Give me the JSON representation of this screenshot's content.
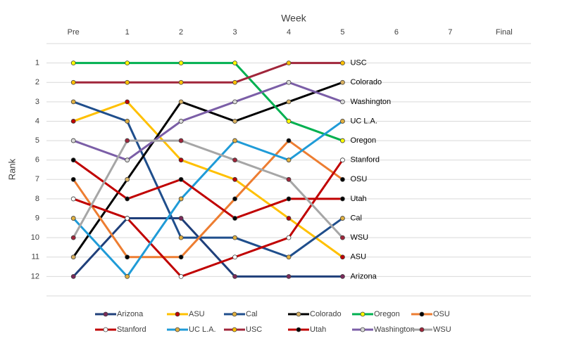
{
  "chart_data": {
    "type": "line",
    "x_label": "Week",
    "y_label": "Rank",
    "categories": [
      "Pre",
      "1",
      "2",
      "3",
      "4",
      "5",
      "6",
      "7",
      "Final"
    ],
    "ylim": [
      0,
      13
    ],
    "y_reversed": true,
    "yticks": [
      1,
      2,
      3,
      4,
      5,
      6,
      7,
      8,
      9,
      10,
      11,
      12
    ],
    "grid": true,
    "legend": "bottom",
    "series": [
      {
        "name": "Arizona",
        "color": "#1f3f7a",
        "marker_color": "#7a2a5a",
        "values": [
          12,
          9,
          9,
          12,
          12,
          12,
          null,
          null,
          null
        ]
      },
      {
        "name": "ASU",
        "color": "#ffc000",
        "marker_color": "#c00000",
        "values": [
          4,
          3,
          6,
          7,
          9,
          11,
          null,
          null,
          null
        ]
      },
      {
        "name": "Cal",
        "color": "#1f4e8c",
        "marker_color": "#e0b040",
        "values": [
          3,
          4,
          10,
          10,
          11,
          9,
          null,
          null,
          null
        ]
      },
      {
        "name": "Colorado",
        "color": "#000000",
        "marker_color": "#d8b060",
        "values": [
          11,
          7,
          3,
          4,
          3,
          2,
          null,
          null,
          null
        ]
      },
      {
        "name": "Oregon",
        "color": "#00b050",
        "marker_color": "#ffff00",
        "values": [
          1,
          1,
          1,
          1,
          4,
          5,
          null,
          null,
          null
        ]
      },
      {
        "name": "OSU",
        "color": "#ed7d31",
        "marker_color": "#000000",
        "values": [
          7,
          11,
          11,
          8,
          5,
          7,
          null,
          null,
          null
        ]
      },
      {
        "name": "Stanford",
        "color": "#c00000",
        "marker_color": "#ffffff",
        "values": [
          8,
          9,
          12,
          11,
          10,
          6,
          null,
          null,
          null
        ]
      },
      {
        "name": "UC L.A.",
        "color": "#1f9bd7",
        "marker_color": "#e0b040",
        "values": [
          9,
          12,
          8,
          5,
          6,
          4,
          null,
          null,
          null
        ]
      },
      {
        "name": "USC",
        "color": "#a0253a",
        "marker_color": "#ffc000",
        "values": [
          2,
          2,
          2,
          2,
          1,
          1,
          null,
          null,
          null
        ]
      },
      {
        "name": "Utah",
        "color": "#c00000",
        "marker_color": "#000000",
        "values": [
          6,
          8,
          7,
          9,
          8,
          8,
          null,
          null,
          null
        ]
      },
      {
        "name": "Washington",
        "color": "#7b5ea7",
        "marker_color": "#d9d9d9",
        "values": [
          5,
          6,
          4,
          3,
          2,
          3,
          null,
          null,
          null
        ]
      },
      {
        "name": "WSU",
        "color": "#a6a6a6",
        "marker_color": "#a0253a",
        "values": [
          10,
          5,
          5,
          6,
          7,
          10,
          null,
          null,
          null
        ]
      }
    ]
  }
}
